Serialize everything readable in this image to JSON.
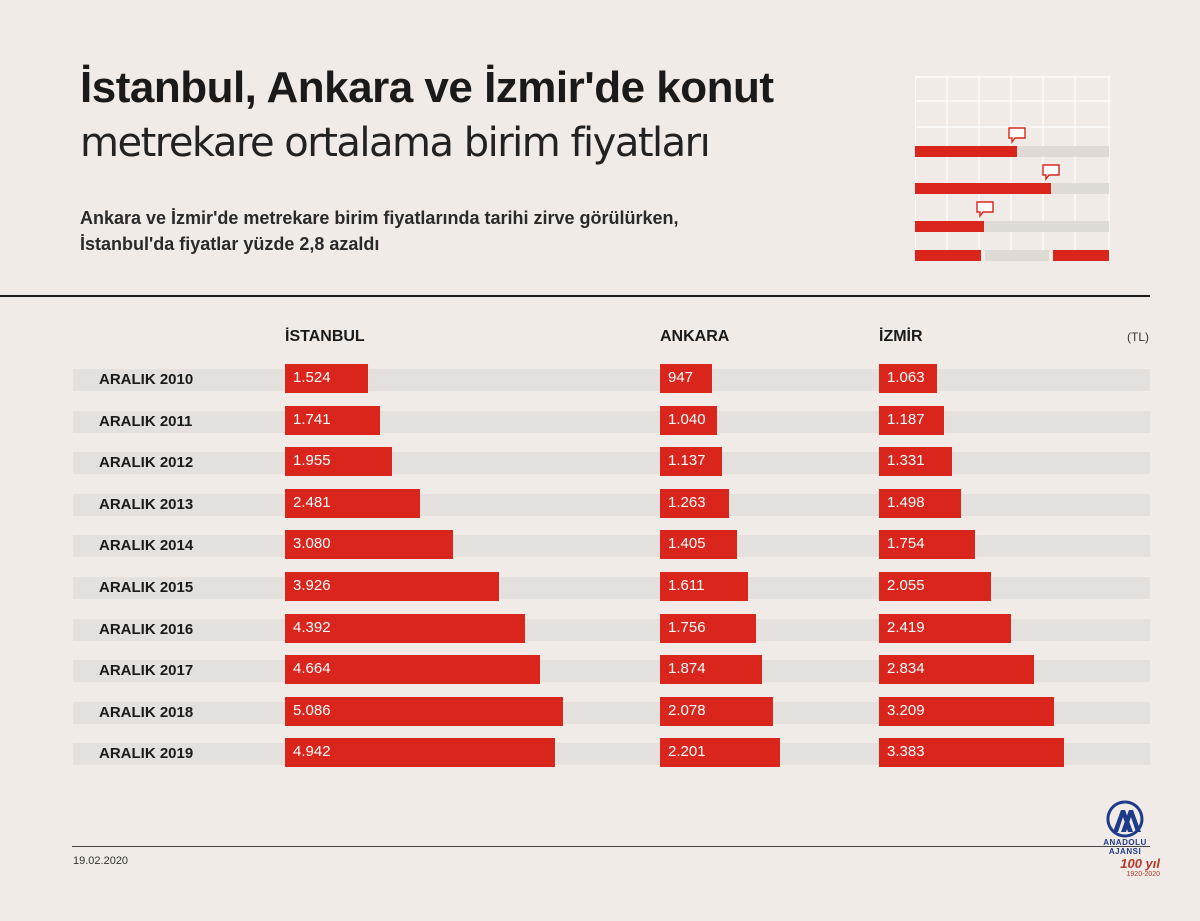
{
  "header": {
    "title_bold": "İstanbul, Ankara ve İzmir'de konut",
    "title_light": "metrekare ortalama birim fiyatları",
    "subtitle_line1": "Ankara ve İzmir'de metrekare birim fiyatlarında tarihi zirve görülürken,",
    "subtitle_line2": "İstanbul'da fiyatlar yüzde 2,8 azaldı"
  },
  "footer": {
    "date": "19.02.2020",
    "logo_text": "ANADOLU AJANSI",
    "logo_anniv": "100 yıl",
    "logo_years": "1920-2020"
  },
  "colors": {
    "bar": "#d9251c",
    "track": "#e3e0dd",
    "background": "#f0ebe6"
  },
  "chart_data": {
    "type": "bar",
    "orientation": "horizontal",
    "unit": "(TL)",
    "categories": [
      "ARALIK 2010",
      "ARALIK 2011",
      "ARALIK 2012",
      "ARALIK 2013",
      "ARALIK 2014",
      "ARALIK 2015",
      "ARALIK 2016",
      "ARALIK 2017",
      "ARALIK 2018",
      "ARALIK 2019"
    ],
    "series": [
      {
        "name": "İSTANBUL",
        "values": [
          1524,
          1741,
          1955,
          2481,
          3080,
          3926,
          4392,
          4664,
          5086,
          4942
        ],
        "labels": [
          "1.524",
          "1.741",
          "1.955",
          "2.481",
          "3.080",
          "3.926",
          "4.392",
          "4.664",
          "5.086",
          "4.942"
        ]
      },
      {
        "name": "ANKARA",
        "values": [
          947,
          1040,
          1137,
          1263,
          1405,
          1611,
          1756,
          1874,
          2078,
          2201
        ],
        "labels": [
          "947",
          "1.040",
          "1.137",
          "1.263",
          "1.405",
          "1.611",
          "1.756",
          "1.874",
          "2.078",
          "2.201"
        ]
      },
      {
        "name": "İZMİR",
        "values": [
          1063,
          1187,
          1331,
          1498,
          1754,
          2055,
          2419,
          2834,
          3209,
          3383
        ],
        "labels": [
          "1.063",
          "1.187",
          "1.331",
          "1.498",
          "1.754",
          "2.055",
          "2.419",
          "2.834",
          "3.209",
          "3.383"
        ]
      }
    ]
  }
}
